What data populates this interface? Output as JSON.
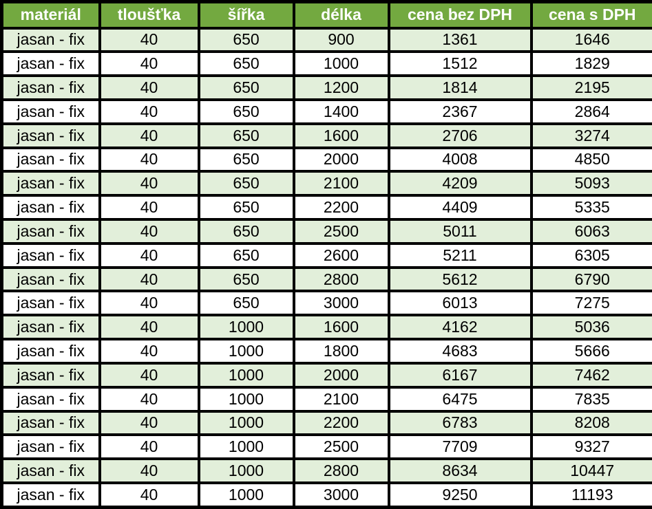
{
  "colors": {
    "header_bg": "#73a940",
    "header_text": "#ffffff",
    "row_alt_bg": "#e2efda",
    "row_bg": "#ffffff",
    "border": "#000000",
    "text": "#000000"
  },
  "table": {
    "columns": [
      {
        "key": "material",
        "label": "materiál"
      },
      {
        "key": "thickness",
        "label": "tloušťka"
      },
      {
        "key": "width",
        "label": "šířka"
      },
      {
        "key": "length",
        "label": "délka"
      },
      {
        "key": "price-ex-vat",
        "label": "cena bez DPH"
      },
      {
        "key": "price-inc-vat",
        "label": "cena s DPH"
      }
    ],
    "rows": [
      [
        "jasan - fix",
        "40",
        "650",
        "900",
        "1361",
        "1646"
      ],
      [
        "jasan - fix",
        "40",
        "650",
        "1000",
        "1512",
        "1829"
      ],
      [
        "jasan - fix",
        "40",
        "650",
        "1200",
        "1814",
        "2195"
      ],
      [
        "jasan - fix",
        "40",
        "650",
        "1400",
        "2367",
        "2864"
      ],
      [
        "jasan - fix",
        "40",
        "650",
        "1600",
        "2706",
        "3274"
      ],
      [
        "jasan - fix",
        "40",
        "650",
        "2000",
        "4008",
        "4850"
      ],
      [
        "jasan - fix",
        "40",
        "650",
        "2100",
        "4209",
        "5093"
      ],
      [
        "jasan - fix",
        "40",
        "650",
        "2200",
        "4409",
        "5335"
      ],
      [
        "jasan - fix",
        "40",
        "650",
        "2500",
        "5011",
        "6063"
      ],
      [
        "jasan - fix",
        "40",
        "650",
        "2600",
        "5211",
        "6305"
      ],
      [
        "jasan - fix",
        "40",
        "650",
        "2800",
        "5612",
        "6790"
      ],
      [
        "jasan - fix",
        "40",
        "650",
        "3000",
        "6013",
        "7275"
      ],
      [
        "jasan - fix",
        "40",
        "1000",
        "1600",
        "4162",
        "5036"
      ],
      [
        "jasan - fix",
        "40",
        "1000",
        "1800",
        "4683",
        "5666"
      ],
      [
        "jasan - fix",
        "40",
        "1000",
        "2000",
        "6167",
        "7462"
      ],
      [
        "jasan - fix",
        "40",
        "1000",
        "2100",
        "6475",
        "7835"
      ],
      [
        "jasan - fix",
        "40",
        "1000",
        "2200",
        "6783",
        "8208"
      ],
      [
        "jasan - fix",
        "40",
        "1000",
        "2500",
        "7709",
        "9327"
      ],
      [
        "jasan - fix",
        "40",
        "1000",
        "2800",
        "8634",
        "10447"
      ],
      [
        "jasan - fix",
        "40",
        "1000",
        "3000",
        "9250",
        "11193"
      ]
    ]
  }
}
